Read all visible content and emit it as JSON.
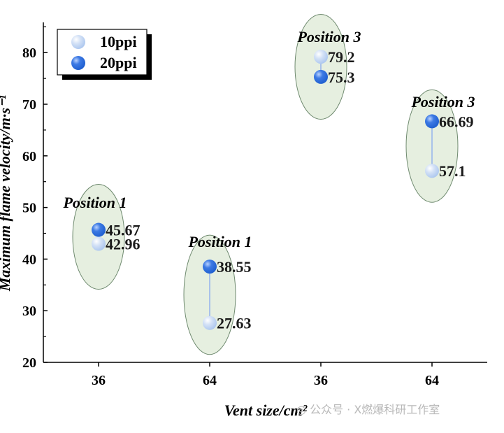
{
  "chart_data": {
    "type": "scatter",
    "xlabel": "Vent size/cm²",
    "ylabel": "Maximum flame velocity/m·s⁻¹",
    "ylim": [
      20,
      85
    ],
    "yticks": [
      20,
      30,
      40,
      50,
      60,
      70,
      80
    ],
    "categories": [
      "36",
      "64",
      "36",
      "64"
    ],
    "groups": [
      {
        "label": "Position 1",
        "category_index": 0,
        "values": {
          "10ppi": 42.96,
          "20ppi": 45.67
        },
        "labels": {
          "10ppi": "42.96",
          "20ppi": "45.67"
        }
      },
      {
        "label": "Position 1",
        "category_index": 1,
        "values": {
          "10ppi": 27.63,
          "20ppi": 38.55
        },
        "labels": {
          "10ppi": "27.63",
          "20ppi": "38.55"
        }
      },
      {
        "label": "Position 3",
        "category_index": 2,
        "values": {
          "10ppi": 79.2,
          "20ppi": 75.3
        },
        "labels": {
          "10ppi": "79.2",
          "20ppi": "75.3"
        }
      },
      {
        "label": "Position 3",
        "category_index": 3,
        "values": {
          "10ppi": 57.1,
          "20ppi": 66.69
        },
        "labels": {
          "10ppi": "57.1",
          "20ppi": "66.69"
        }
      }
    ],
    "series": [
      {
        "name": "10ppi",
        "key": "10ppi",
        "color": "#aec8ef"
      },
      {
        "name": "20ppi",
        "key": "20ppi",
        "color": "#1f5fd0"
      }
    ],
    "legend_position": "top-left",
    "grid": false,
    "colors": {
      "ellipse_fill": "#e6efe0",
      "ellipse_stroke": "#6f8a6f",
      "connector": "#a9c2ea",
      "axis": "#000000"
    }
  },
  "watermark": {
    "icon": "wechat-icon",
    "text": "公众号 · X燃爆科研工作室"
  }
}
